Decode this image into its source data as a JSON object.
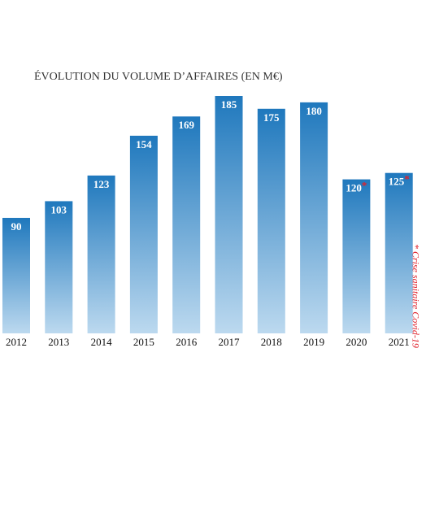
{
  "chart_data": {
    "type": "bar",
    "title": "ÉVOLUTION DU VOLUME D’AFFAIRES (EN M€)",
    "categories": [
      "2012",
      "2013",
      "2014",
      "2015",
      "2016",
      "2017",
      "2018",
      "2019",
      "2020",
      "2021"
    ],
    "values": [
      90,
      103,
      123,
      154,
      169,
      185,
      175,
      180,
      120,
      125
    ],
    "value_labels": [
      "90",
      "103",
      "123",
      "154",
      "169",
      "185",
      "175",
      "180",
      "120*",
      "125*"
    ],
    "color": "#1f78bd",
    "annotation": "* Crise sanitaire Covid-19",
    "annotation_color": "#e0202a"
  }
}
